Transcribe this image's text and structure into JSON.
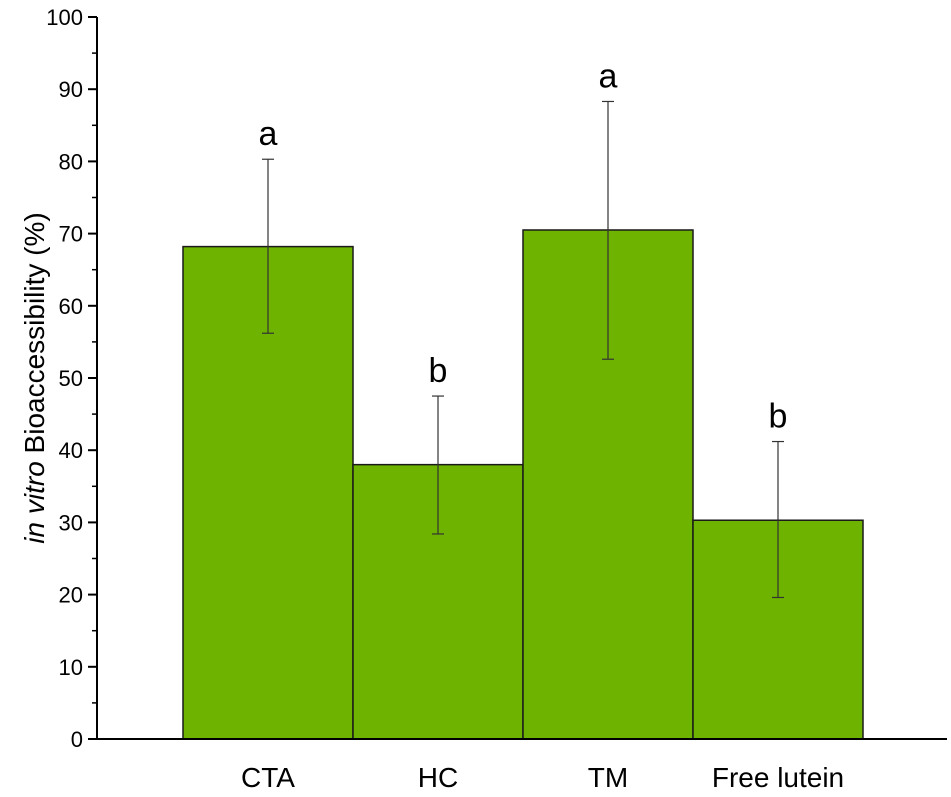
{
  "chart_data": {
    "type": "bar",
    "title": "",
    "xlabel": "",
    "ylabel": {
      "italic": "in vitro",
      "rest": " Bioaccessibility (%)"
    },
    "ylim": [
      0,
      100
    ],
    "yticks": [
      0,
      10,
      20,
      30,
      40,
      50,
      60,
      70,
      80,
      90,
      100
    ],
    "categories": [
      "CTA",
      "HC",
      "TM",
      "Free lutein"
    ],
    "values": [
      68.2,
      38.0,
      70.5,
      30.3
    ],
    "error_low": [
      56.2,
      28.4,
      52.6,
      19.6
    ],
    "error_high": [
      80.3,
      47.5,
      88.3,
      41.2
    ],
    "significance_letters": [
      "a",
      "b",
      "a",
      "b"
    ],
    "bar_color": "#6db300",
    "bar_edge_color": "#1a1a1a",
    "grid": false,
    "legend": "none"
  }
}
